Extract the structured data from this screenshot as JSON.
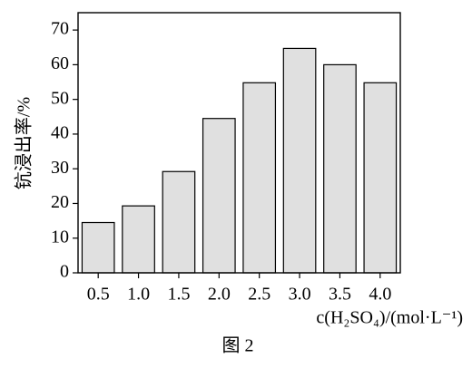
{
  "chart_data": {
    "type": "bar",
    "categories": [
      "0.5",
      "1.0",
      "1.5",
      "2.0",
      "2.5",
      "3.0",
      "3.5",
      "4.0"
    ],
    "values": [
      14.5,
      19.3,
      29.2,
      44.5,
      54.8,
      64.7,
      60.0,
      54.8
    ],
    "color": "#e0e0e0",
    "ylim": [
      0,
      75
    ],
    "yticks": [
      0,
      10,
      20,
      30,
      40,
      50,
      60,
      70
    ],
    "y_label": "钪浸出率/%",
    "x_label": "c(H₂SO₄)/(mol·L⁻¹)",
    "caption": "图 2"
  }
}
